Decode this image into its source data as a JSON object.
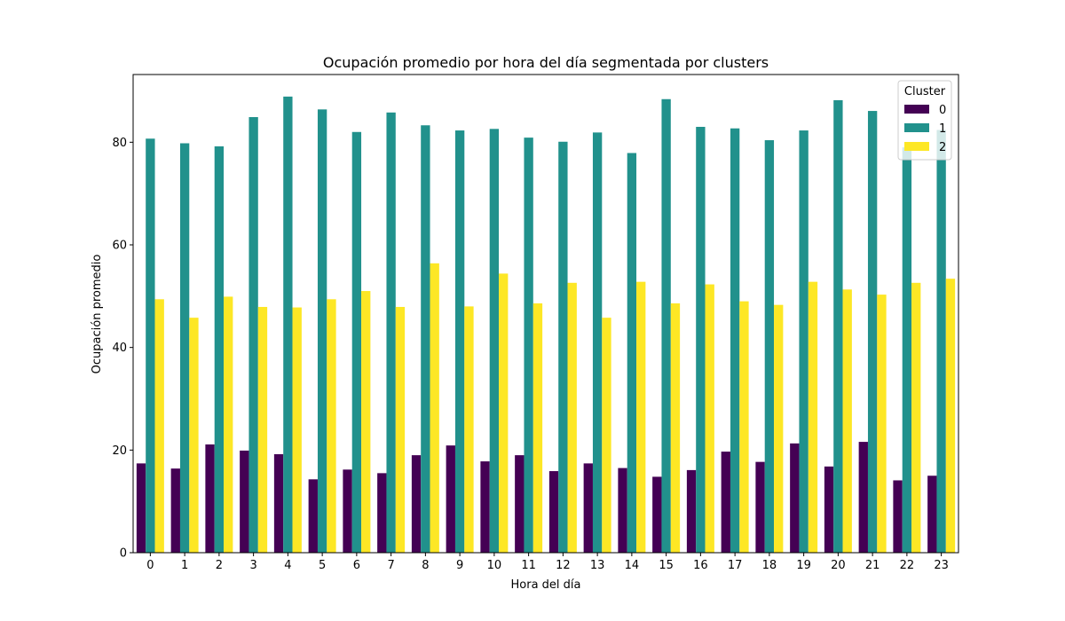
{
  "chart_data": {
    "type": "bar",
    "title": "Ocupación promedio por hora del día segmentada por clusters",
    "xlabel": "Hora del día",
    "ylabel": "Ocupación promedio",
    "categories": [
      "0",
      "1",
      "2",
      "3",
      "4",
      "5",
      "6",
      "7",
      "8",
      "9",
      "10",
      "11",
      "12",
      "13",
      "14",
      "15",
      "16",
      "17",
      "18",
      "19",
      "20",
      "21",
      "22",
      "23"
    ],
    "yticks": [
      "0",
      "20",
      "40",
      "60",
      "80"
    ],
    "ylim": [
      0,
      93.2
    ],
    "grid": false,
    "legend": {
      "title": "Cluster",
      "placement": "top-right"
    },
    "series": [
      {
        "name": "0",
        "color": "#440154",
        "values": [
          17.4,
          16.4,
          21.1,
          19.9,
          19.2,
          14.3,
          16.2,
          15.5,
          19.0,
          20.9,
          17.8,
          19.0,
          15.9,
          17.4,
          16.5,
          14.8,
          16.1,
          19.7,
          17.7,
          21.3,
          16.8,
          21.6,
          14.1,
          15.0
        ]
      },
      {
        "name": "1",
        "color": "#21918c",
        "values": [
          80.7,
          79.8,
          79.2,
          84.9,
          88.9,
          86.4,
          82.0,
          85.8,
          83.3,
          82.3,
          82.6,
          80.9,
          80.1,
          81.9,
          77.9,
          88.4,
          83.0,
          82.7,
          80.4,
          82.3,
          88.2,
          86.1,
          79.0,
          82.4
        ]
      },
      {
        "name": "2",
        "color": "#fde725",
        "values": [
          49.4,
          45.8,
          49.9,
          47.9,
          47.8,
          49.4,
          51.0,
          47.9,
          56.4,
          48.0,
          54.4,
          48.6,
          52.6,
          45.8,
          52.8,
          48.6,
          52.3,
          49.0,
          48.3,
          52.8,
          51.3,
          50.3,
          52.6,
          53.4
        ]
      }
    ]
  }
}
